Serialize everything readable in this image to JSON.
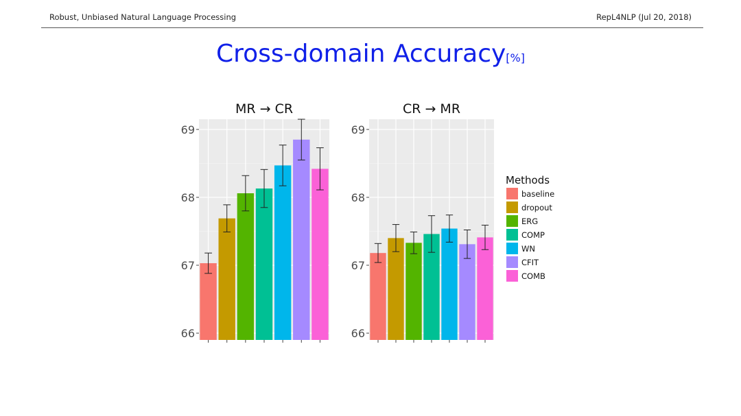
{
  "header": {
    "left": "Robust, Unbiased Natural Language Processing",
    "right": "RepL4NLP (Jul 20, 2018)"
  },
  "title": {
    "main": "Cross-domain Accuracy",
    "unit": "[%]"
  },
  "legend": {
    "title": "Methods"
  },
  "chart_data": [
    {
      "type": "bar",
      "title": "MR → CR",
      "categories": [
        "baseline",
        "dropout",
        "ERG",
        "COMP",
        "WN",
        "CFIT",
        "COMB"
      ],
      "values": [
        67.03,
        67.69,
        68.06,
        68.13,
        68.47,
        68.85,
        68.42
      ],
      "error": [
        0.15,
        0.2,
        0.26,
        0.28,
        0.3,
        0.3,
        0.31
      ],
      "colors": [
        "#f8766d",
        "#c49a00",
        "#53b400",
        "#00c094",
        "#00b6eb",
        "#a58aff",
        "#fb61d7"
      ],
      "ylim": [
        65.9,
        69.15
      ],
      "yticks": [
        "66",
        "67",
        "68",
        "69"
      ],
      "grid": true,
      "legend_position": "right"
    },
    {
      "type": "bar",
      "title": "CR → MR",
      "categories": [
        "baseline",
        "dropout",
        "ERG",
        "COMP",
        "WN",
        "CFIT",
        "COMB"
      ],
      "values": [
        67.18,
        67.4,
        67.33,
        67.46,
        67.54,
        67.31,
        67.41
      ],
      "error": [
        0.14,
        0.2,
        0.16,
        0.27,
        0.2,
        0.21,
        0.18
      ],
      "colors": [
        "#f8766d",
        "#c49a00",
        "#53b400",
        "#00c094",
        "#00b6eb",
        "#a58aff",
        "#fb61d7"
      ],
      "ylim": [
        65.9,
        69.15
      ],
      "yticks": [
        "66",
        "67",
        "68",
        "69"
      ],
      "grid": true,
      "legend_position": "right"
    }
  ]
}
